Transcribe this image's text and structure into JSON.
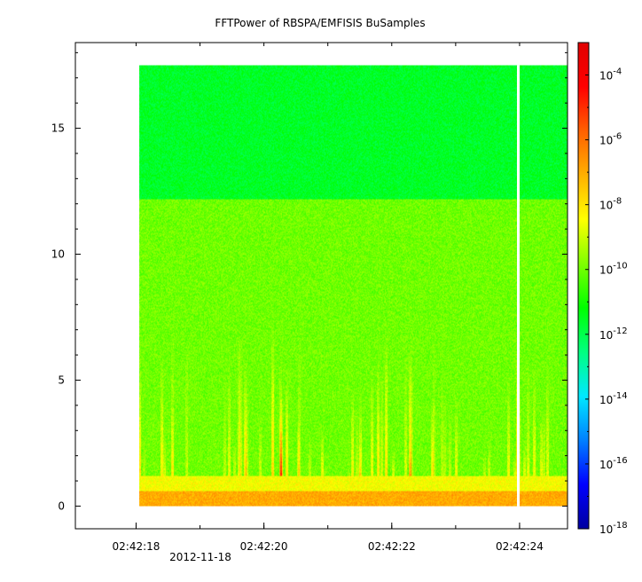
{
  "chart_data": {
    "type": "heatmap",
    "title": "FFTPower of RBSPA/EMFISIS  BuSamples",
    "xlabel": "",
    "ylabel": "",
    "date_label": "2012-11-18",
    "x_tick_labels": [
      "02:42:18",
      "02:42:20",
      "02:42:22",
      "02:42:24"
    ],
    "x_tick_seconds": [
      17.0,
      19.0,
      21.0,
      23.0
    ],
    "x_minor_tick_seconds": [
      17.0,
      18.0,
      19.0,
      20.0,
      21.0,
      22.0,
      23.0
    ],
    "xlim_seconds": [
      16.05,
      23.75
    ],
    "data_x_range_seconds": [
      17.05,
      23.75
    ],
    "gap_at_seconds": 22.98,
    "y_ticks": [
      0,
      5,
      10,
      15
    ],
    "ylim": [
      -0.9,
      18.4
    ],
    "data_y_range": [
      0,
      17.5
    ],
    "colorbar": {
      "scale": "log",
      "range": [
        1e-18,
        0.001
      ],
      "tick_exponents": [
        -18,
        -16,
        -14,
        -12,
        -10,
        -8,
        -6,
        -4
      ],
      "tick_base": "10",
      "colors": [
        "#0000a0",
        "#0000ff",
        "#0080ff",
        "#00e8ff",
        "#00ff80",
        "#00ff00",
        "#80ff00",
        "#ffff00",
        "#ffb000",
        "#ff6000",
        "#ff0000",
        "#e00000"
      ]
    },
    "bands": [
      {
        "y_from": 12.2,
        "y_to": 17.5,
        "log_power": -11.6
      },
      {
        "y_from": 1.2,
        "y_to": 12.2,
        "log_power": -10.0
      },
      {
        "y_from": 0.6,
        "y_to": 1.2,
        "log_power": -8.5
      },
      {
        "y_from": 0.0,
        "y_to": 0.6,
        "log_power": -7.0
      }
    ]
  }
}
